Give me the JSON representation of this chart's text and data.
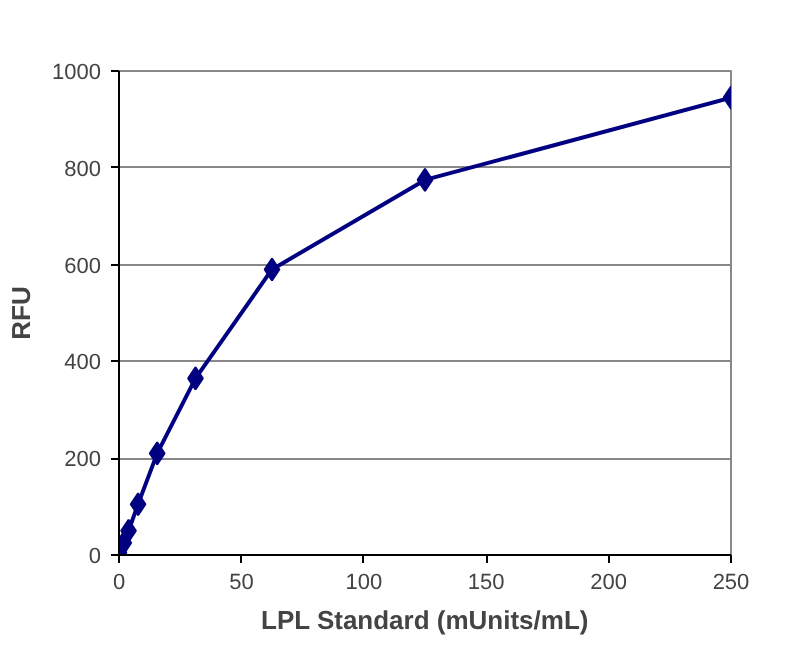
{
  "chart_data": {
    "type": "line",
    "xlabel": "LPL Standard (mUnits/mL)",
    "ylabel": "RFU",
    "x": [
      0,
      1.95,
      3.9,
      7.8,
      15.6,
      31.25,
      62.5,
      125,
      250
    ],
    "series": [
      {
        "color": "#000080",
        "values": [
          5,
          25,
          50,
          105,
          210,
          365,
          590,
          775,
          945
        ]
      }
    ],
    "xlim": [
      0,
      250
    ],
    "xticks": [
      0,
      50,
      100,
      150,
      200,
      250
    ],
    "ylim": [
      0,
      1000
    ],
    "yticks": [
      0,
      200,
      400,
      600,
      800,
      1000
    ],
    "grid": "y",
    "marker": "diamond",
    "line_style": "solid"
  }
}
